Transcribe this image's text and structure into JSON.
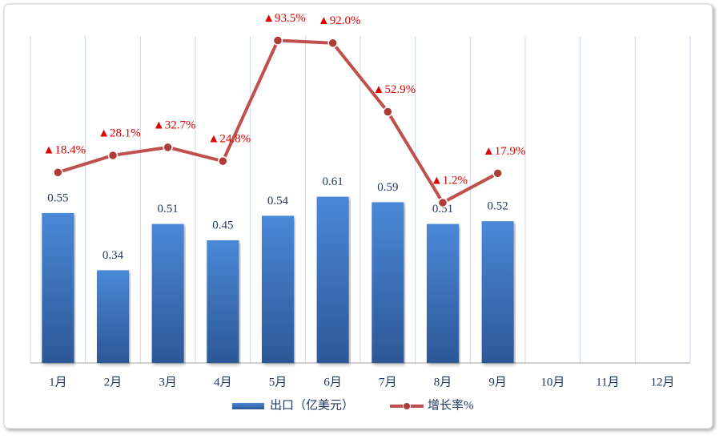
{
  "chart_data": {
    "type": "bar-line",
    "categories": [
      "1月",
      "2月",
      "3月",
      "4月",
      "5月",
      "6月",
      "7月",
      "8月",
      "9月",
      "10月",
      "11月",
      "12月"
    ],
    "series": [
      {
        "name": "出口（亿美元）",
        "type": "bar",
        "color": "#3a73c0",
        "values": [
          0.55,
          0.34,
          0.51,
          0.45,
          0.54,
          0.61,
          0.59,
          0.51,
          0.52,
          null,
          null,
          null
        ]
      },
      {
        "name": "增长率%",
        "type": "line",
        "axis": "y2",
        "color": "#c0504d",
        "values": [
          18.4,
          28.1,
          32.7,
          24.8,
          93.5,
          92.0,
          52.9,
          1.2,
          17.9,
          null,
          null,
          null
        ],
        "value_labels": [
          "▲18.4%",
          "▲28.1%",
          "▲32.7%",
          "▲24.8%",
          "▲93.5%",
          "▲92.0%",
          "▲52.9%",
          "▲1.2%",
          "▲17.9%",
          null,
          null,
          null
        ]
      }
    ],
    "ylim": [
      0,
      1.2
    ],
    "y2lim": [
      -90,
      96
    ],
    "grid": "vertical",
    "legend": "bottom"
  }
}
